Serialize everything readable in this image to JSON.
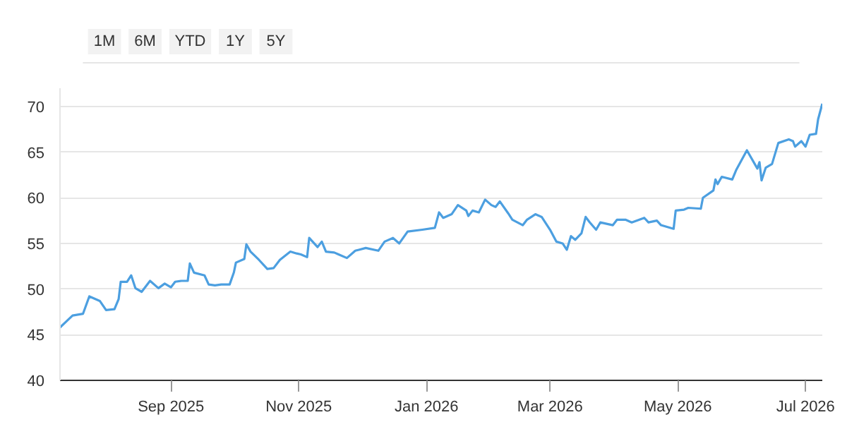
{
  "chart_data": {
    "type": "line",
    "annotations": [
      "1M",
      "6M",
      "YTD",
      "1Y",
      "5Y"
    ],
    "x": [
      "2025-07-10",
      "2025-07-16",
      "2025-07-21",
      "2025-07-24",
      "2025-07-29",
      "2025-08-01",
      "2025-08-05",
      "2025-08-07",
      "2025-08-08",
      "2025-08-11",
      "2025-08-13",
      "2025-08-15",
      "2025-08-18",
      "2025-08-22",
      "2025-08-26",
      "2025-08-29",
      "2025-09-01",
      "2025-09-03",
      "2025-09-06",
      "2025-09-09",
      "2025-09-10",
      "2025-09-12",
      "2025-09-17",
      "2025-09-19",
      "2025-09-22",
      "2025-09-25",
      "2025-09-29",
      "2025-10-01",
      "2025-10-02",
      "2025-10-06",
      "2025-10-07",
      "2025-10-09",
      "2025-10-13",
      "2025-10-17",
      "2025-10-20",
      "2025-10-23",
      "2025-10-28",
      "2025-10-31",
      "2025-11-02",
      "2025-11-05",
      "2025-11-06",
      "2025-11-10",
      "2025-11-12",
      "2025-11-14",
      "2025-11-18",
      "2025-11-20",
      "2025-11-24",
      "2025-11-28",
      "2025-12-03",
      "2025-12-09",
      "2025-12-12",
      "2025-12-16",
      "2025-12-19",
      "2025-12-23",
      "2025-12-30",
      "2026-01-05",
      "2026-01-07",
      "2026-01-09",
      "2026-01-13",
      "2026-01-16",
      "2026-01-20",
      "2026-01-21",
      "2026-01-23",
      "2026-01-26",
      "2026-01-29",
      "2026-02-01",
      "2026-02-03",
      "2026-02-05",
      "2026-02-09",
      "2026-02-11",
      "2026-02-16",
      "2026-02-18",
      "2026-02-22",
      "2026-02-25",
      "2026-03-01",
      "2026-03-04",
      "2026-03-07",
      "2026-03-09",
      "2026-03-11",
      "2026-03-13",
      "2026-03-16",
      "2026-03-18",
      "2026-03-20",
      "2026-03-23",
      "2026-03-25",
      "2026-03-31",
      "2026-04-02",
      "2026-04-06",
      "2026-04-09",
      "2026-04-15",
      "2026-04-17",
      "2026-04-21",
      "2026-04-23",
      "2026-04-29",
      "2026-04-30",
      "2026-05-04",
      "2026-05-06",
      "2026-05-12",
      "2026-05-13",
      "2026-05-18",
      "2026-05-19",
      "2026-05-20",
      "2026-05-22",
      "2026-05-27",
      "2026-05-29",
      "2026-06-03",
      "2026-06-08",
      "2026-06-09",
      "2026-06-10",
      "2026-06-12",
      "2026-06-15",
      "2026-06-18",
      "2026-06-23",
      "2026-06-25",
      "2026-06-26",
      "2026-06-29",
      "2026-07-01",
      "2026-07-03",
      "2026-07-06",
      "2026-07-07",
      "2026-07-09"
    ],
    "series": [
      {
        "color": "#4c9fe0",
        "values": [
          45.8,
          47.1,
          47.3,
          49.2,
          48.7,
          47.7,
          47.8,
          48.9,
          50.8,
          50.8,
          51.5,
          50.1,
          49.7,
          50.9,
          50.1,
          50.6,
          50.2,
          50.8,
          50.9,
          50.9,
          52.8,
          51.8,
          51.5,
          50.5,
          50.4,
          50.5,
          50.5,
          51.8,
          52.9,
          53.3,
          54.9,
          54.1,
          53.2,
          52.2,
          52.3,
          53.2,
          54.1,
          53.9,
          53.8,
          53.5,
          55.6,
          54.6,
          55.2,
          54.1,
          54.0,
          53.8,
          53.4,
          54.2,
          54.5,
          54.2,
          55.2,
          55.6,
          55.0,
          56.3,
          56.5,
          56.7,
          58.4,
          57.8,
          58.2,
          59.2,
          58.6,
          58.0,
          58.6,
          58.4,
          59.8,
          59.2,
          59.0,
          59.6,
          58.3,
          57.6,
          57.0,
          57.6,
          58.2,
          57.9,
          56.5,
          55.2,
          55.0,
          54.3,
          55.8,
          55.4,
          56.1,
          57.9,
          57.3,
          56.5,
          57.3,
          57.0,
          57.6,
          57.6,
          57.3,
          57.8,
          57.3,
          57.5,
          57.0,
          56.6,
          58.6,
          58.7,
          58.9,
          58.8,
          60.0,
          60.8,
          62.0,
          61.5,
          62.3,
          62.0,
          63.1,
          65.2,
          63.2,
          63.9,
          61.9,
          63.3,
          63.7,
          66.0,
          66.4,
          66.2,
          65.6,
          66.2,
          65.6,
          66.9,
          67.0,
          68.6,
          70.3
        ]
      }
    ],
    "xlim": [
      "2025-07-10",
      "2026-07-09"
    ],
    "xticks": [
      {
        "value": "2025-09-01",
        "label": "Sep 2025"
      },
      {
        "value": "2025-11-01",
        "label": "Nov 2025"
      },
      {
        "value": "2026-01-01",
        "label": "Jan 2026"
      },
      {
        "value": "2026-03-01",
        "label": "Mar 2026"
      },
      {
        "value": "2026-05-01",
        "label": "May 2026"
      },
      {
        "value": "2026-07-01",
        "label": "Jul 2026"
      }
    ],
    "ylim": [
      40,
      72
    ],
    "yticks": [
      40,
      45,
      50,
      55,
      60,
      65,
      70
    ],
    "grid": "y",
    "marker": "none",
    "line_style": "solid"
  }
}
